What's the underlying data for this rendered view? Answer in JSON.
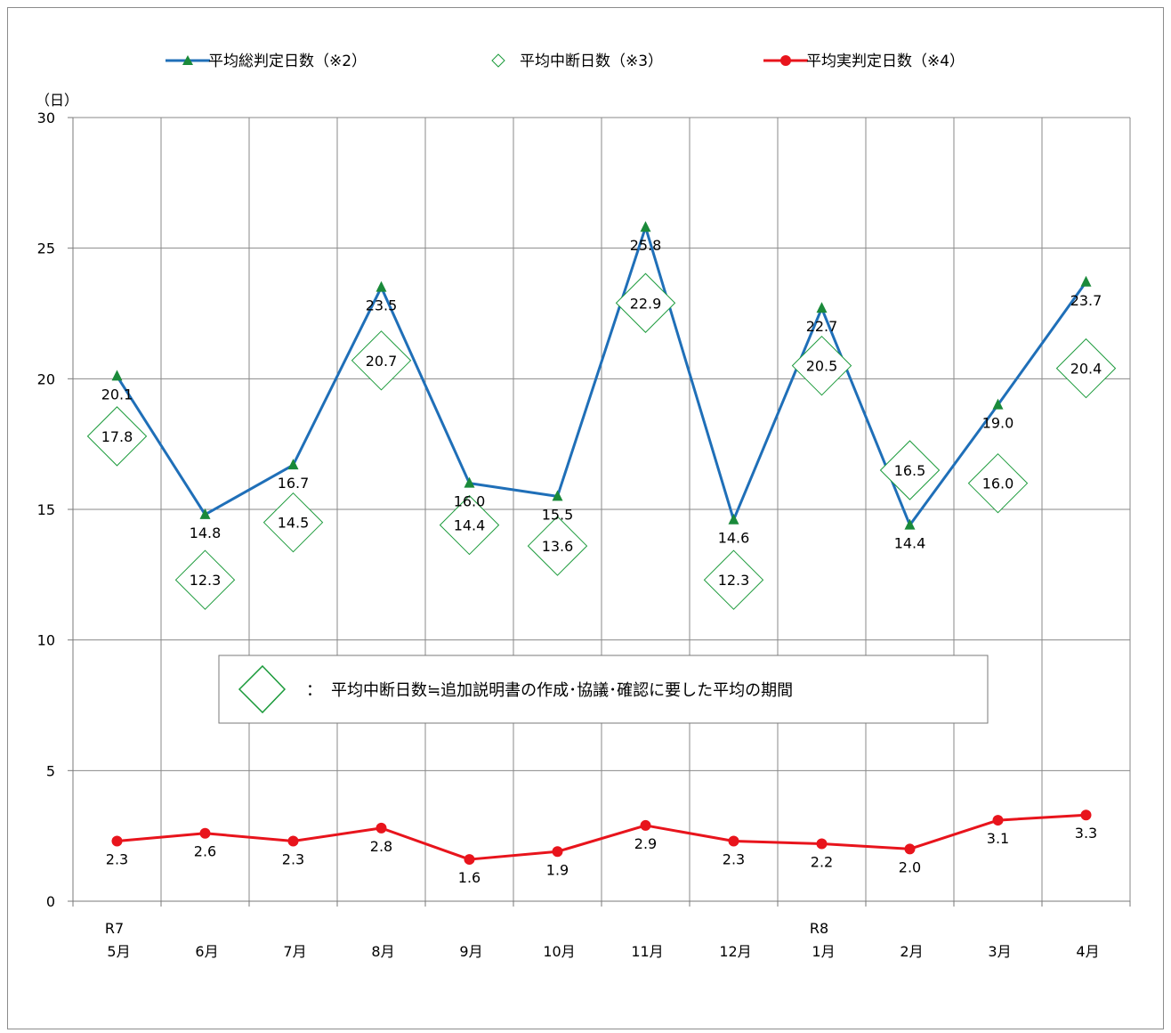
{
  "chart_data": {
    "type": "line",
    "ylabel": "（日）",
    "ylim": [
      0,
      30
    ],
    "yticks": [
      0,
      5,
      10,
      15,
      20,
      25,
      30
    ],
    "grid": true,
    "legend_position": "top",
    "categories": [
      {
        "top": "R7",
        "bottom": "5月"
      },
      {
        "top": "",
        "bottom": "6月"
      },
      {
        "top": "",
        "bottom": "7月"
      },
      {
        "top": "",
        "bottom": "8月"
      },
      {
        "top": "",
        "bottom": "9月"
      },
      {
        "top": "",
        "bottom": "10月"
      },
      {
        "top": "",
        "bottom": "11月"
      },
      {
        "top": "",
        "bottom": "12月"
      },
      {
        "top": "R8",
        "bottom": "1月"
      },
      {
        "top": "",
        "bottom": "2月"
      },
      {
        "top": "",
        "bottom": "3月"
      },
      {
        "top": "",
        "bottom": "4月"
      }
    ],
    "series": [
      {
        "name": "平均総判定日数（※2）",
        "color": "#1f6fb8",
        "marker_color": "#1a8a3a",
        "marker": "triangle",
        "values": [
          20.1,
          14.8,
          16.7,
          23.5,
          16.0,
          15.5,
          25.8,
          14.6,
          22.7,
          14.4,
          19.0,
          23.7
        ],
        "labels": [
          "20.1",
          "14.8",
          "16.7",
          "23.5",
          "16.0",
          "15.5",
          "25.8",
          "14.6",
          "22.7",
          "14.4",
          "19.0",
          "23.7"
        ]
      },
      {
        "name": "平均中断日数（※3）",
        "color": "#1a9a3a",
        "marker": "diamond",
        "values": [
          17.8,
          12.3,
          14.5,
          20.7,
          14.4,
          13.6,
          22.9,
          12.3,
          20.5,
          16.5,
          16.0,
          20.4
        ],
        "labels": [
          "17.8",
          "12.3",
          "14.5",
          "20.7",
          "14.4",
          "13.6",
          "22.9",
          "12.3",
          "20.5",
          "16.5",
          "16.0",
          "20.4"
        ]
      },
      {
        "name": "平均実判定日数（※4）",
        "color": "#e8141c",
        "marker": "circle",
        "values": [
          2.3,
          2.6,
          2.3,
          2.8,
          1.6,
          1.9,
          2.9,
          2.3,
          2.2,
          2.0,
          3.1,
          3.3
        ],
        "labels": [
          "2.3",
          "2.6",
          "2.3",
          "2.8",
          "1.6",
          "1.9",
          "2.9",
          "2.3",
          "2.2",
          "2.0",
          "3.1",
          "3.3"
        ]
      }
    ],
    "annotation": {
      "separator": "：",
      "text": "平均中断日数≒追加説明書の作成･協議･確認に要した平均の期間"
    }
  }
}
